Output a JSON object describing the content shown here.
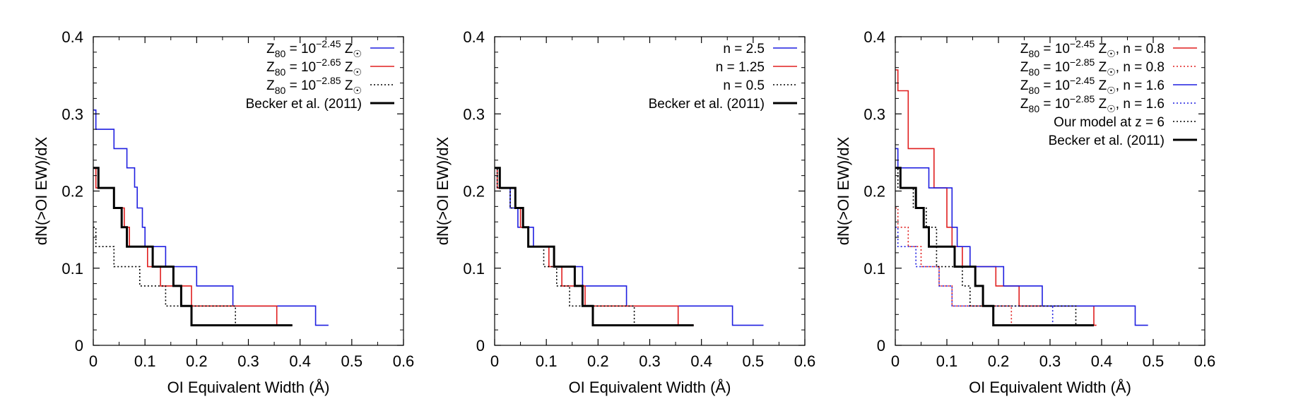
{
  "chart_data": [
    {
      "type": "line",
      "title": "",
      "xlabel": "OI Equivalent Width (Å)",
      "ylabel": "dN(>OI EW)/dX",
      "xlim": [
        0,
        0.6
      ],
      "ylim": [
        0,
        0.4
      ],
      "xticks": [
        "0",
        "0.1",
        "0.2",
        "0.3",
        "0.4",
        "0.5",
        "0.6"
      ],
      "yticks": [
        "0",
        "0.1",
        "0.2",
        "0.3",
        "0.4"
      ],
      "grid": false,
      "legend_position": "top-right",
      "series": [
        {
          "label": {
            "pre": "Z",
            "sub": "80",
            "mid": " = 10",
            "sup": "−2.45",
            "post": " Z",
            "sub2": "☉"
          },
          "color": "#1f1fe0",
          "style": "solid",
          "width": 1.6,
          "x": [
            0,
            0.005,
            0.005,
            0.04,
            0.04,
            0.065,
            0.065,
            0.08,
            0.08,
            0.085,
            0.085,
            0.095,
            0.095,
            0.1,
            0.1,
            0.11,
            0.11,
            0.14,
            0.14,
            0.16,
            0.16,
            0.2,
            0.2,
            0.27,
            0.27,
            0.43,
            0.43,
            0.455
          ],
          "y": [
            0.305,
            0.305,
            0.28,
            0.28,
            0.255,
            0.255,
            0.23,
            0.23,
            0.205,
            0.205,
            0.178,
            0.178,
            0.153,
            0.153,
            0.128,
            0.128,
            0.128,
            0.128,
            0.102,
            0.102,
            0.102,
            0.102,
            0.077,
            0.077,
            0.051,
            0.051,
            0.026,
            0.026
          ]
        },
        {
          "label": {
            "pre": "Z",
            "sub": "80",
            "mid": " = 10",
            "sup": "−2.65",
            "post": " Z",
            "sub2": "☉"
          },
          "color": "#e01f1f",
          "style": "solid",
          "width": 1.6,
          "x": [
            0,
            0.005,
            0.005,
            0.03,
            0.03,
            0.04,
            0.04,
            0.06,
            0.06,
            0.07,
            0.07,
            0.105,
            0.105,
            0.13,
            0.13,
            0.145,
            0.145,
            0.19,
            0.19,
            0.355,
            0.355,
            0.385
          ],
          "y": [
            0.23,
            0.23,
            0.204,
            0.204,
            0.204,
            0.204,
            0.178,
            0.178,
            0.153,
            0.153,
            0.128,
            0.128,
            0.102,
            0.102,
            0.077,
            0.077,
            0.077,
            0.077,
            0.051,
            0.051,
            0.026,
            0.026
          ]
        },
        {
          "label": {
            "pre": "Z",
            "sub": "80",
            "mid": " = 10",
            "sup": "−2.85",
            "post": " Z",
            "sub2": "☉"
          },
          "color": "#000000",
          "style": "dotted",
          "width": 1.6,
          "x": [
            0,
            0.005,
            0.005,
            0.025,
            0.025,
            0.04,
            0.04,
            0.09,
            0.09,
            0.125,
            0.125,
            0.14,
            0.14,
            0.275,
            0.275,
            0.385
          ],
          "y": [
            0.153,
            0.153,
            0.128,
            0.128,
            0.128,
            0.128,
            0.102,
            0.102,
            0.077,
            0.077,
            0.077,
            0.077,
            0.051,
            0.051,
            0.026,
            0.026
          ]
        },
        {
          "label": {
            "pre": "Becker et al. (2011)"
          },
          "color": "#000000",
          "style": "solid",
          "width": 3,
          "x": [
            0,
            0.01,
            0.01,
            0.025,
            0.025,
            0.04,
            0.04,
            0.055,
            0.055,
            0.065,
            0.065,
            0.075,
            0.075,
            0.115,
            0.115,
            0.155,
            0.155,
            0.17,
            0.17,
            0.19,
            0.19,
            0.235,
            0.235,
            0.385
          ],
          "y": [
            0.23,
            0.23,
            0.204,
            0.204,
            0.204,
            0.204,
            0.178,
            0.178,
            0.153,
            0.153,
            0.128,
            0.128,
            0.128,
            0.128,
            0.102,
            0.102,
            0.077,
            0.077,
            0.051,
            0.051,
            0.026,
            0.026,
            0.026,
            0.026
          ]
        }
      ]
    },
    {
      "type": "line",
      "title": "",
      "xlabel": "OI Equivalent Width (Å)",
      "ylabel": "dN(>OI EW)/dX",
      "xlim": [
        0,
        0.6
      ],
      "ylim": [
        0,
        0.4
      ],
      "xticks": [
        "0",
        "0.1",
        "0.2",
        "0.3",
        "0.4",
        "0.5",
        "0.6"
      ],
      "yticks": [
        "0",
        "0.1",
        "0.2",
        "0.3",
        "0.4"
      ],
      "grid": false,
      "legend_position": "top-right",
      "series": [
        {
          "label": {
            "pre": "n = 2.5"
          },
          "color": "#1f1fe0",
          "style": "solid",
          "width": 1.6,
          "x": [
            0,
            0.005,
            0.005,
            0.03,
            0.03,
            0.045,
            0.045,
            0.06,
            0.06,
            0.075,
            0.075,
            0.115,
            0.115,
            0.17,
            0.17,
            0.255,
            0.255,
            0.46,
            0.46,
            0.52
          ],
          "y": [
            0.23,
            0.23,
            0.204,
            0.204,
            0.178,
            0.178,
            0.153,
            0.153,
            0.153,
            0.153,
            0.128,
            0.128,
            0.102,
            0.102,
            0.077,
            0.077,
            0.051,
            0.051,
            0.026,
            0.026
          ]
        },
        {
          "label": {
            "pre": "n = 1.25"
          },
          "color": "#e01f1f",
          "style": "solid",
          "width": 1.6,
          "x": [
            0,
            0.005,
            0.005,
            0.04,
            0.04,
            0.05,
            0.05,
            0.065,
            0.065,
            0.105,
            0.105,
            0.13,
            0.13,
            0.175,
            0.175,
            0.355,
            0.355,
            0.385
          ],
          "y": [
            0.23,
            0.23,
            0.204,
            0.204,
            0.178,
            0.178,
            0.153,
            0.153,
            0.128,
            0.128,
            0.102,
            0.102,
            0.077,
            0.077,
            0.051,
            0.051,
            0.026,
            0.026
          ]
        },
        {
          "label": {
            "pre": "n = 0.5"
          },
          "color": "#000000",
          "style": "dotted",
          "width": 1.6,
          "x": [
            0,
            0.005,
            0.005,
            0.03,
            0.03,
            0.055,
            0.055,
            0.065,
            0.065,
            0.095,
            0.095,
            0.12,
            0.12,
            0.145,
            0.145,
            0.27,
            0.27,
            0.385
          ],
          "y": [
            0.23,
            0.23,
            0.204,
            0.204,
            0.178,
            0.178,
            0.153,
            0.153,
            0.128,
            0.128,
            0.102,
            0.102,
            0.077,
            0.077,
            0.051,
            0.051,
            0.026,
            0.026
          ]
        },
        {
          "label": {
            "pre": "Becker et al. (2011)"
          },
          "color": "#000000",
          "style": "solid",
          "width": 3,
          "x": [
            0,
            0.01,
            0.01,
            0.025,
            0.025,
            0.04,
            0.04,
            0.055,
            0.055,
            0.065,
            0.065,
            0.075,
            0.075,
            0.115,
            0.115,
            0.155,
            0.155,
            0.17,
            0.17,
            0.19,
            0.19,
            0.235,
            0.235,
            0.385
          ],
          "y": [
            0.23,
            0.23,
            0.204,
            0.204,
            0.204,
            0.204,
            0.178,
            0.178,
            0.153,
            0.153,
            0.128,
            0.128,
            0.128,
            0.128,
            0.102,
            0.102,
            0.077,
            0.077,
            0.051,
            0.051,
            0.026,
            0.026,
            0.026,
            0.026
          ]
        }
      ]
    },
    {
      "type": "line",
      "title": "",
      "xlabel": "OI Equivalent Width (Å)",
      "ylabel": "dN(>OI EW)/dX",
      "xlim": [
        0,
        0.6
      ],
      "ylim": [
        0,
        0.4
      ],
      "xticks": [
        "0",
        "0.1",
        "0.2",
        "0.3",
        "0.4",
        "0.5",
        "0.6"
      ],
      "yticks": [
        "0",
        "0.1",
        "0.2",
        "0.3",
        "0.4"
      ],
      "grid": false,
      "legend_position": "top-right",
      "series": [
        {
          "label": {
            "pre": "Z",
            "sub": "80",
            "mid": " = 10",
            "sup": "−2.45",
            "post": " Z",
            "sub2": "☉",
            "tail": ", n = 0.8"
          },
          "color": "#e01f1f",
          "style": "solid",
          "width": 1.6,
          "x": [
            0,
            0.005,
            0.005,
            0.015,
            0.015,
            0.025,
            0.025,
            0.045,
            0.045,
            0.075,
            0.075,
            0.1,
            0.1,
            0.11,
            0.11,
            0.13,
            0.13,
            0.195,
            0.195,
            0.24,
            0.24,
            0.385,
            0.385,
            0.39
          ],
          "y": [
            0.357,
            0.357,
            0.33,
            0.33,
            0.33,
            0.33,
            0.255,
            0.255,
            0.255,
            0.255,
            0.204,
            0.204,
            0.153,
            0.153,
            0.128,
            0.128,
            0.102,
            0.102,
            0.077,
            0.077,
            0.051,
            0.051,
            0.026,
            0.026
          ]
        },
        {
          "label": {
            "pre": "Z",
            "sub": "80",
            "mid": " = 10",
            "sup": "−2.85",
            "post": " Z",
            "sub2": "☉",
            "tail": ", n = 0.8"
          },
          "color": "#e01f1f",
          "style": "dotted",
          "width": 1.6,
          "x": [
            0,
            0.005,
            0.005,
            0.025,
            0.025,
            0.05,
            0.05,
            0.085,
            0.085,
            0.11,
            0.11,
            0.14,
            0.14,
            0.225,
            0.225,
            0.25
          ],
          "y": [
            0.178,
            0.178,
            0.153,
            0.153,
            0.128,
            0.128,
            0.102,
            0.102,
            0.077,
            0.077,
            0.051,
            0.051,
            0.051,
            0.051,
            0.026,
            0.026
          ]
        },
        {
          "label": {
            "pre": "Z",
            "sub": "80",
            "mid": " = 10",
            "sup": "−2.45",
            "post": " Z",
            "sub2": "☉",
            "tail": ", n = 1.6"
          },
          "color": "#1f1fe0",
          "style": "solid",
          "width": 1.6,
          "x": [
            0,
            0.005,
            0.005,
            0.065,
            0.065,
            0.11,
            0.11,
            0.12,
            0.12,
            0.145,
            0.145,
            0.21,
            0.21,
            0.285,
            0.285,
            0.465,
            0.465,
            0.49
          ],
          "y": [
            0.255,
            0.255,
            0.23,
            0.23,
            0.204,
            0.204,
            0.153,
            0.153,
            0.128,
            0.128,
            0.102,
            0.102,
            0.077,
            0.077,
            0.051,
            0.051,
            0.026,
            0.026
          ]
        },
        {
          "label": {
            "pre": "Z",
            "sub": "80",
            "mid": " = 10",
            "sup": "−2.85",
            "post": " Z",
            "sub2": "☉",
            "tail": ", n = 1.6"
          },
          "color": "#1f1fe0",
          "style": "dotted",
          "width": 1.6,
          "x": [
            0,
            0.005,
            0.005,
            0.025,
            0.025,
            0.04,
            0.04,
            0.085,
            0.085,
            0.11,
            0.11,
            0.15,
            0.15,
            0.305,
            0.305,
            0.31
          ],
          "y": [
            0.153,
            0.153,
            0.128,
            0.128,
            0.128,
            0.128,
            0.102,
            0.102,
            0.077,
            0.077,
            0.051,
            0.051,
            0.051,
            0.051,
            0.026,
            0.026
          ]
        },
        {
          "label": {
            "pre": "Our model at z = 6"
          },
          "color": "#000000",
          "style": "dotted",
          "width": 1.6,
          "x": [
            0,
            0.005,
            0.005,
            0.02,
            0.02,
            0.035,
            0.035,
            0.06,
            0.06,
            0.08,
            0.08,
            0.11,
            0.11,
            0.13,
            0.13,
            0.145,
            0.145,
            0.2,
            0.2,
            0.35,
            0.35,
            0.385
          ],
          "y": [
            0.23,
            0.23,
            0.204,
            0.204,
            0.204,
            0.204,
            0.178,
            0.178,
            0.153,
            0.153,
            0.102,
            0.102,
            0.102,
            0.102,
            0.077,
            0.077,
            0.051,
            0.051,
            0.051,
            0.051,
            0.026,
            0.026
          ]
        },
        {
          "label": {
            "pre": "Becker et al. (2011)"
          },
          "color": "#000000",
          "style": "solid",
          "width": 3,
          "x": [
            0,
            0.01,
            0.01,
            0.025,
            0.025,
            0.04,
            0.04,
            0.055,
            0.055,
            0.065,
            0.065,
            0.075,
            0.075,
            0.115,
            0.115,
            0.155,
            0.155,
            0.17,
            0.17,
            0.19,
            0.19,
            0.235,
            0.235,
            0.385
          ],
          "y": [
            0.23,
            0.23,
            0.204,
            0.204,
            0.204,
            0.204,
            0.178,
            0.178,
            0.153,
            0.153,
            0.128,
            0.128,
            0.128,
            0.128,
            0.102,
            0.102,
            0.077,
            0.077,
            0.051,
            0.051,
            0.026,
            0.026,
            0.026,
            0.026
          ]
        }
      ]
    }
  ]
}
